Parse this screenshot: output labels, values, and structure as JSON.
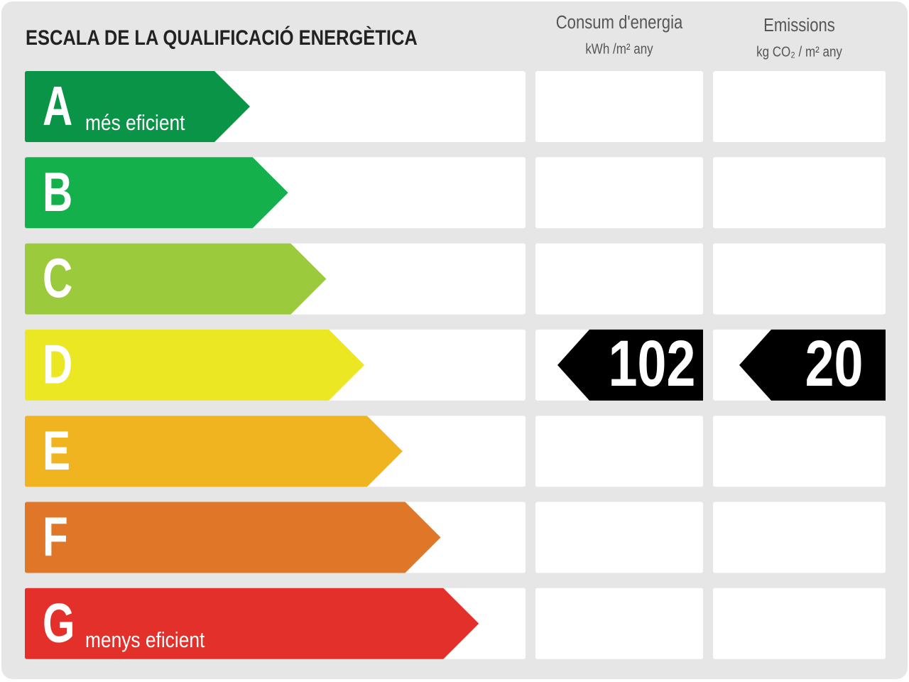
{
  "header": {
    "title": "ESCALA DE LA QUALIFICACIÓ ENERGÈTICA"
  },
  "columns": [
    {
      "title": "Consum d'energia",
      "unit": "kWh /m² any"
    },
    {
      "title": "Emissions",
      "unit": "kg CO₂ / m² any"
    }
  ],
  "rows": [
    {
      "letter": "A",
      "label": "més eficient",
      "color": "#0a9447"
    },
    {
      "letter": "B",
      "color": "#13b04b"
    },
    {
      "letter": "C",
      "color": "#9bcb3c"
    },
    {
      "letter": "D",
      "color": "#ebe722"
    },
    {
      "letter": "E",
      "color": "#efb41f"
    },
    {
      "letter": "F",
      "color": "#e07627"
    },
    {
      "letter": "G",
      "label": "menys eficient",
      "color": "#e3302a"
    }
  ],
  "results": [
    {
      "value": 102,
      "rating": "D"
    },
    {
      "value": 20,
      "rating": "D"
    }
  ]
}
